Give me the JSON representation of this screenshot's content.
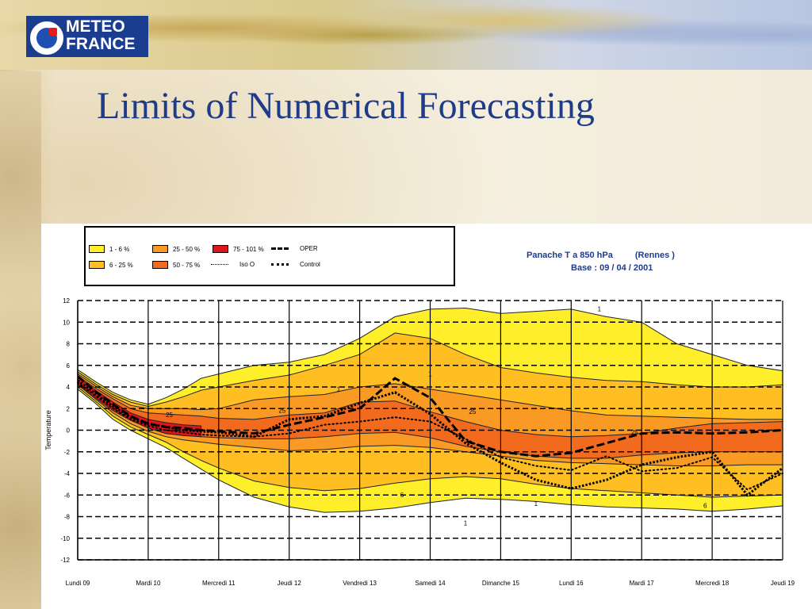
{
  "slide": {
    "title": "Limits of Numerical Forecasting",
    "logo_line1": "METEO",
    "logo_line2": "FRANCE"
  },
  "colors": {
    "title": "#1f3c8a",
    "band_1_6": "#ffef2a",
    "band_6_25": "#ffbf22",
    "band_25_50": "#f89a24",
    "band_50_75": "#f26a1e",
    "band_75_101": "#e0141a"
  },
  "legend": {
    "items": [
      {
        "label": "1 - 6 %",
        "kind": "swatch",
        "color": "#ffef2a"
      },
      {
        "label": "6 - 25 %",
        "kind": "swatch",
        "color": "#ffbf22"
      },
      {
        "label": "25 - 50 %",
        "kind": "swatch",
        "color": "#f89a24"
      },
      {
        "label": "50 - 75 %",
        "kind": "swatch",
        "color": "#f26a1e"
      },
      {
        "label": "75 - 101 %",
        "kind": "swatch",
        "color": "#e0141a"
      },
      {
        "label": "Iso O",
        "kind": "dotted-line"
      },
      {
        "label": "OPER",
        "kind": "dashed-line"
      },
      {
        "label": "Control",
        "kind": "dense-dotted-line"
      }
    ]
  },
  "chart_data": {
    "type": "area",
    "title_line1_a": "Panache T a 850 hPa",
    "title_line1_b": "(Rennes  )",
    "title_line2": "Base : 09 / 04 / 2001",
    "ylabel": "Temperature",
    "xlabel": "",
    "ylim": [
      -12,
      12
    ],
    "yticks": [
      12,
      10,
      8,
      6,
      4,
      2,
      0,
      -2,
      -4,
      -6,
      -8,
      -10,
      -12
    ],
    "categories": [
      "Lundi 09",
      "Mardi 10",
      "Mercredi 11",
      "Jeudi 12",
      "Vendredi 13",
      "Samedi 14",
      "Dimanche 15",
      "Lundi 16",
      "Mardi 17",
      "Mercredi 18",
      "Jeudi 19"
    ],
    "x": [
      0,
      0.25,
      0.5,
      0.75,
      1,
      1.25,
      1.5,
      1.75,
      2,
      2.5,
      3,
      3.5,
      4,
      4.5,
      5,
      5.5,
      6,
      6.5,
      7,
      7.5,
      8,
      8.5,
      9,
      9.5,
      10
    ],
    "bands": [
      {
        "name": "1 - 6 %",
        "color": "#ffef2a",
        "upper": [
          5.6,
          4.5,
          3.5,
          2.8,
          2.4,
          3.0,
          3.8,
          4.8,
          5.2,
          6.0,
          6.3,
          7.0,
          8.5,
          10.5,
          11.2,
          11.3,
          10.8,
          11.0,
          11.2,
          10.5,
          10.0,
          8.0,
          7.0,
          6.0,
          5.5
        ],
        "lower": [
          3.8,
          2.5,
          1.0,
          0.0,
          -0.8,
          -1.6,
          -2.6,
          -3.6,
          -4.6,
          -6.2,
          -7.1,
          -7.6,
          -7.5,
          -7.2,
          -6.7,
          -6.3,
          -6.4,
          -6.6,
          -6.9,
          -7.1,
          -7.2,
          -7.3,
          -7.5,
          -7.3,
          -7.0
        ]
      },
      {
        "name": "6 - 25 %",
        "color": "#ffbf22",
        "upper": [
          5.4,
          4.3,
          3.3,
          2.6,
          2.2,
          2.6,
          3.1,
          3.7,
          4.0,
          4.6,
          5.1,
          6.0,
          7.0,
          9.0,
          8.5,
          7.0,
          5.8,
          5.3,
          4.9,
          4.6,
          4.5,
          4.2,
          4.0,
          4.0,
          4.2
        ],
        "lower": [
          4.0,
          2.7,
          1.3,
          0.3,
          -0.4,
          -1.1,
          -2.0,
          -2.8,
          -3.5,
          -4.7,
          -5.3,
          -5.6,
          -5.4,
          -4.9,
          -4.5,
          -4.3,
          -4.5,
          -5.0,
          -5.4,
          -5.6,
          -5.8,
          -6.0,
          -6.2,
          -6.1,
          -6.0
        ]
      },
      {
        "name": "25 - 50 %",
        "color": "#f89a24",
        "upper": [
          5.2,
          4.1,
          3.1,
          2.3,
          2.0,
          2.0,
          2.0,
          1.9,
          2.0,
          2.8,
          3.1,
          3.3,
          4.0,
          4.3,
          3.8,
          3.3,
          2.8,
          2.3,
          1.8,
          1.4,
          1.3,
          1.2,
          1.1,
          1.0,
          1.0
        ],
        "lower": [
          4.2,
          2.9,
          1.6,
          0.6,
          -0.1,
          -0.6,
          -0.9,
          -1.1,
          -1.3,
          -1.6,
          -1.9,
          -1.8,
          -1.5,
          -1.4,
          -1.6,
          -2.0,
          -2.4,
          -2.8,
          -3.0,
          -3.1,
          -3.2,
          -3.3,
          -3.3,
          -3.2,
          -3.2
        ]
      },
      {
        "name": "50 - 75 %",
        "color": "#f26a1e",
        "upper": [
          5.0,
          3.9,
          2.9,
          2.0,
          1.6,
          1.5,
          1.4,
          1.3,
          1.1,
          1.0,
          1.4,
          1.6,
          2.6,
          2.7,
          1.7,
          0.8,
          0.0,
          -0.4,
          -0.6,
          -0.5,
          -0.3,
          0.2,
          0.6,
          0.7,
          0.8
        ],
        "lower": [
          4.4,
          3.1,
          1.9,
          1.0,
          0.2,
          -0.3,
          -0.5,
          -0.6,
          -0.7,
          -0.8,
          -0.8,
          -0.6,
          -0.3,
          -0.2,
          -0.7,
          -1.5,
          -2.0,
          -2.4,
          -2.6,
          -2.6,
          -2.3,
          -2.1,
          -2.0,
          -2.0,
          -2.0
        ]
      },
      {
        "name": "75 - 101 %",
        "color": "#e0141a",
        "upper": [
          4.9,
          3.7,
          2.6,
          1.6,
          1.0,
          0.7,
          0.5,
          0.4,
          null,
          null,
          null,
          null,
          null,
          null,
          null,
          null,
          null,
          null,
          null,
          null,
          null,
          null,
          null,
          null,
          null
        ],
        "lower": [
          4.3,
          3.0,
          1.8,
          0.9,
          0.2,
          -0.3,
          -0.5,
          -0.6,
          null,
          null,
          null,
          null,
          null,
          null,
          null,
          null,
          null,
          null,
          null,
          null,
          null,
          null,
          null,
          null,
          null
        ]
      }
    ],
    "series": [
      {
        "name": "OPER",
        "style": "dashed",
        "values": [
          5.0,
          3.6,
          2.4,
          1.3,
          0.6,
          0.3,
          0.2,
          0.0,
          -0.1,
          -0.3,
          0.5,
          1.2,
          2.0,
          4.8,
          3.0,
          -1.0,
          -2.0,
          -2.4,
          -2.1,
          -1.2,
          -0.3,
          -0.2,
          -0.3,
          -0.2,
          0.0
        ]
      },
      {
        "name": "Iso O",
        "style": "dotted",
        "values": [
          4.4,
          3.2,
          2.0,
          1.0,
          0.4,
          0.0,
          -0.2,
          -0.4,
          -0.5,
          -0.6,
          -0.3,
          0.5,
          0.8,
          1.2,
          0.8,
          -0.8,
          -2.5,
          -3.3,
          -3.7,
          -2.4,
          -3.8,
          -3.5,
          -2.5,
          -5.5,
          -4.0
        ]
      },
      {
        "name": "Control",
        "style": "dense-dotted",
        "values": [
          4.6,
          3.4,
          2.2,
          1.2,
          0.6,
          0.3,
          0.0,
          -0.1,
          -0.2,
          -0.6,
          1.0,
          1.3,
          2.5,
          3.5,
          1.5,
          -1.2,
          -3.0,
          -4.6,
          -5.4,
          -4.6,
          -3.2,
          -2.5,
          -2.0,
          -6.0,
          -3.5
        ]
      }
    ],
    "contour_labels": [
      "25",
      "25",
      "1",
      "1",
      "25",
      "1",
      "6",
      "1",
      "1",
      "25",
      "6"
    ],
    "grid": true
  }
}
